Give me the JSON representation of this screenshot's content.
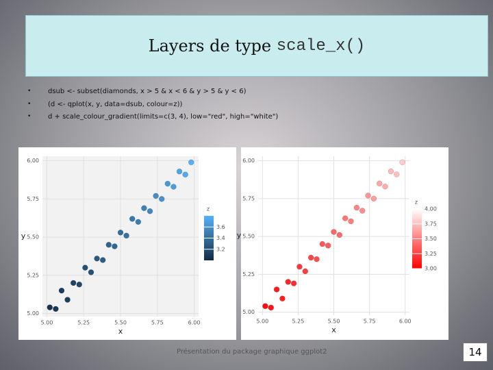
{
  "title": {
    "text": "Layers de type ",
    "code": "scale_x()"
  },
  "bullets": [
    "dsub <- subset(diamonds, x > 5 & x < 6 & y > 5 & y < 6)",
    "(d <- qplot(x, y, data=dsub, colour=z))",
    "d + scale_colour_gradient(limits=c(3, 4), low=\"red\", high=\"white\")"
  ],
  "footer": "Présentation du package graphique ggplot2",
  "page_number": "14",
  "chart_data": [
    {
      "type": "scatter",
      "x_label": "x",
      "y_label": "y",
      "grid": true,
      "background": "#f2f2f2",
      "x": [
        5.02,
        5.06,
        5.1,
        5.14,
        5.18,
        5.22,
        5.26,
        5.3,
        5.34,
        5.38,
        5.42,
        5.46,
        5.5,
        5.54,
        5.58,
        5.62,
        5.66,
        5.7,
        5.74,
        5.78,
        5.82,
        5.86,
        5.9,
        5.94,
        5.98
      ],
      "y": [
        5.04,
        5.03,
        5.15,
        5.09,
        5.2,
        5.19,
        5.3,
        5.27,
        5.36,
        5.35,
        5.45,
        5.44,
        5.53,
        5.51,
        5.62,
        5.6,
        5.69,
        5.67,
        5.77,
        5.75,
        5.85,
        5.83,
        5.93,
        5.91,
        5.99
      ],
      "z": [
        3.05,
        3.08,
        3.1,
        3.12,
        3.15,
        3.18,
        3.22,
        3.24,
        3.27,
        3.3,
        3.34,
        3.36,
        3.4,
        3.42,
        3.46,
        3.49,
        3.52,
        3.55,
        3.58,
        3.61,
        3.65,
        3.68,
        3.72,
        3.75,
        3.8
      ],
      "xlim": [
        4.97,
        6.03
      ],
      "ylim": [
        4.98,
        6.03
      ],
      "xticks": [
        {
          "value": 5,
          "label": "5.00"
        },
        {
          "value": 5.25,
          "label": "5.25"
        },
        {
          "value": 5.5,
          "label": "5.50"
        },
        {
          "value": 5.75,
          "label": "5.75"
        },
        {
          "value": 6,
          "label": "6.00"
        }
      ],
      "yticks": [
        {
          "value": 5,
          "label": "5.00"
        },
        {
          "value": 5.25,
          "label": "5.25"
        },
        {
          "value": 5.5,
          "label": "5.50"
        },
        {
          "value": 5.75,
          "label": "5.75"
        },
        {
          "value": 6,
          "label": "6.00"
        }
      ],
      "legend": {
        "title": "z",
        "low": "#132b43",
        "high": "#56b1f7",
        "lim": [
          3.0,
          3.8
        ],
        "ticks": [
          {
            "value": 3.2,
            "label": "3.2"
          },
          {
            "value": 3.4,
            "label": "3.4"
          },
          {
            "value": 3.6,
            "label": "3.6"
          }
        ]
      }
    },
    {
      "type": "scatter",
      "x_label": "x",
      "y_label": "y",
      "grid": true,
      "background": "#ffffff",
      "x": [
        5.02,
        5.06,
        5.1,
        5.14,
        5.18,
        5.22,
        5.26,
        5.3,
        5.34,
        5.38,
        5.42,
        5.46,
        5.5,
        5.54,
        5.58,
        5.62,
        5.66,
        5.7,
        5.74,
        5.78,
        5.82,
        5.86,
        5.9,
        5.94,
        5.98
      ],
      "y": [
        5.04,
        5.03,
        5.15,
        5.09,
        5.2,
        5.19,
        5.3,
        5.27,
        5.36,
        5.35,
        5.45,
        5.44,
        5.53,
        5.51,
        5.62,
        5.6,
        5.69,
        5.67,
        5.77,
        5.75,
        5.85,
        5.83,
        5.93,
        5.91,
        5.99
      ],
      "z": [
        3.05,
        3.08,
        3.1,
        3.12,
        3.15,
        3.18,
        3.22,
        3.24,
        3.27,
        3.3,
        3.34,
        3.36,
        3.4,
        3.42,
        3.46,
        3.49,
        3.52,
        3.55,
        3.58,
        3.61,
        3.65,
        3.68,
        3.72,
        3.75,
        3.8
      ],
      "xlim": [
        4.97,
        6.03
      ],
      "ylim": [
        4.98,
        6.03
      ],
      "xticks": [
        {
          "value": 5,
          "label": "5.00"
        },
        {
          "value": 5.25,
          "label": "5.25"
        },
        {
          "value": 5.5,
          "label": "5.50"
        },
        {
          "value": 5.75,
          "label": "5.75"
        },
        {
          "value": 6,
          "label": "6.00"
        }
      ],
      "yticks": [
        {
          "value": 5,
          "label": "5.00"
        },
        {
          "value": 5.25,
          "label": "5.25"
        },
        {
          "value": 5.5,
          "label": "5.50"
        },
        {
          "value": 5.75,
          "label": "5.75"
        },
        {
          "value": 6,
          "label": "6.00"
        }
      ],
      "legend": {
        "title": "z",
        "low": "#ff0000",
        "high": "#ffffff",
        "lim": [
          3,
          4
        ],
        "ticks": [
          {
            "value": 3,
            "label": "3.00"
          },
          {
            "value": 3.25,
            "label": "3.25"
          },
          {
            "value": 3.5,
            "label": "3.50"
          },
          {
            "value": 3.75,
            "label": "3.75"
          },
          {
            "value": 4,
            "label": "4.00"
          }
        ]
      }
    }
  ]
}
